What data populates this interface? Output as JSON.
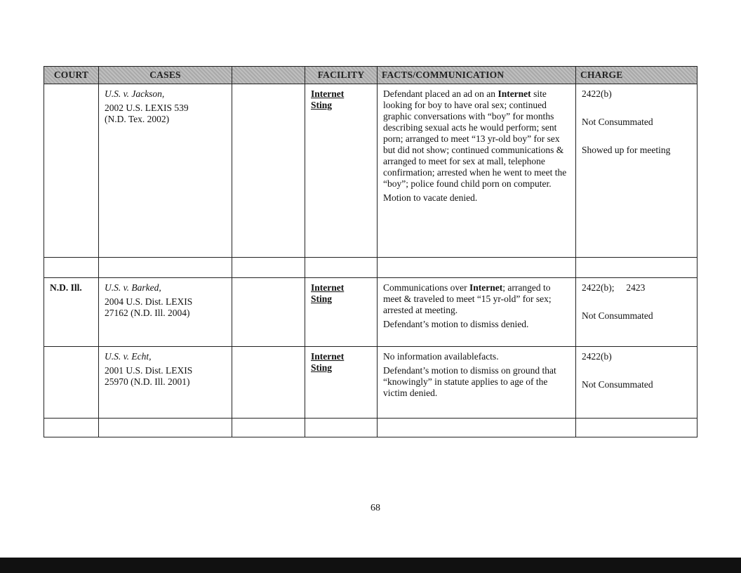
{
  "headers": [
    "COURT",
    "CASES",
    "",
    "FACILITY",
    "FACTS/COMMUNICATION",
    "CHARGE"
  ],
  "rows": [
    {
      "court": "",
      "case_name": "U.S. v. Jackson,",
      "citation": "2002 U.S. LEXIS 539 (N.D. Tex. 2002)",
      "facility": [
        "Internet",
        "Sting"
      ],
      "facts": [
        [
          "Defendant placed an ad on an ",
          "Internet",
          " site looking for boy to have oral sex; continued graphic conversations with “boy” for months describing sexual acts he would perform; sent porn; arranged to meet “13 yr-old boy” for sex but did not show; continued communications & arranged to meet for sex at mall, telephone confirmation; arrested when he went to meet the “boy”; police found child porn on computer."
        ],
        [
          "Motion to vacate denied.",
          "",
          ""
        ]
      ],
      "charge": [
        "2422(b)",
        "Not Consummated",
        "Showed up for meeting"
      ]
    },
    {
      "court": "N.D. Ill.",
      "case_name": "U.S. v. Barked,",
      "citation": "2004 U.S. Dist. LEXIS 27162 (N.D. Ill. 2004)",
      "facility": [
        "Internet",
        "Sting"
      ],
      "facts": [
        [
          "Communications over ",
          "Internet",
          "; arranged to meet & traveled to meet “15 yr-old” for sex; arrested at meeting."
        ],
        [
          "Defendant’s motion to dismiss denied.",
          "",
          ""
        ]
      ],
      "charge": [
        "2422(b);     2423",
        "Not Consummated"
      ]
    },
    {
      "court": "",
      "case_name": "U.S. v. Echt,",
      "citation": "2001 U.S. Dist. LEXIS 25970 (N.D. Ill. 2001)",
      "facility": [
        "Internet",
        "Sting"
      ],
      "facts": [
        [
          "No information availablefacts.",
          "",
          ""
        ],
        [
          "Defendant’s motion to dismiss on ground that “knowingly” in statute applies to age of the victim denied.",
          "",
          ""
        ]
      ],
      "charge": [
        "2422(b)",
        "Not Consummated"
      ]
    }
  ],
  "page_number": "68"
}
